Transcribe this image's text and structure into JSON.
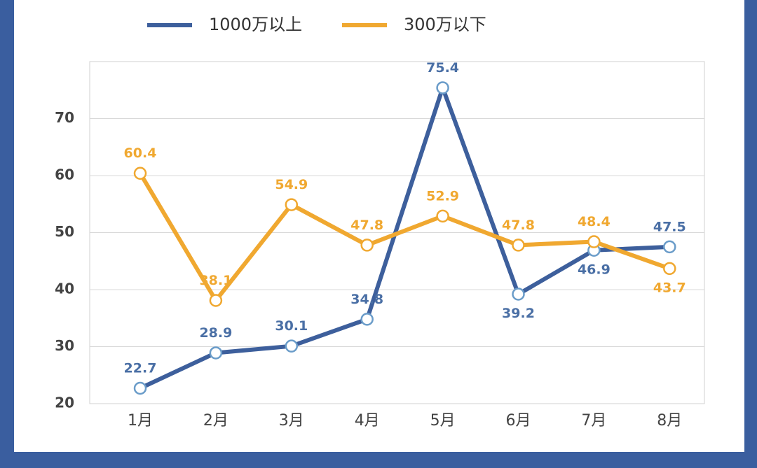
{
  "chart_data": {
    "type": "line",
    "categories": [
      "1月",
      "2月",
      "3月",
      "4月",
      "5月",
      "6月",
      "7月",
      "8月"
    ],
    "series": [
      {
        "name": "1000万以上",
        "color": "#3d5f9c",
        "values": [
          22.7,
          28.9,
          30.1,
          34.8,
          75.4,
          39.2,
          46.9,
          47.5
        ]
      },
      {
        "name": "300万以下",
        "color": "#f0a830",
        "values": [
          60.4,
          38.1,
          54.9,
          47.8,
          52.9,
          47.8,
          48.4,
          43.7
        ]
      }
    ],
    "ylim": [
      20,
      80
    ],
    "yticks": [
      20,
      30,
      40,
      50,
      60,
      70
    ],
    "grid": true
  }
}
